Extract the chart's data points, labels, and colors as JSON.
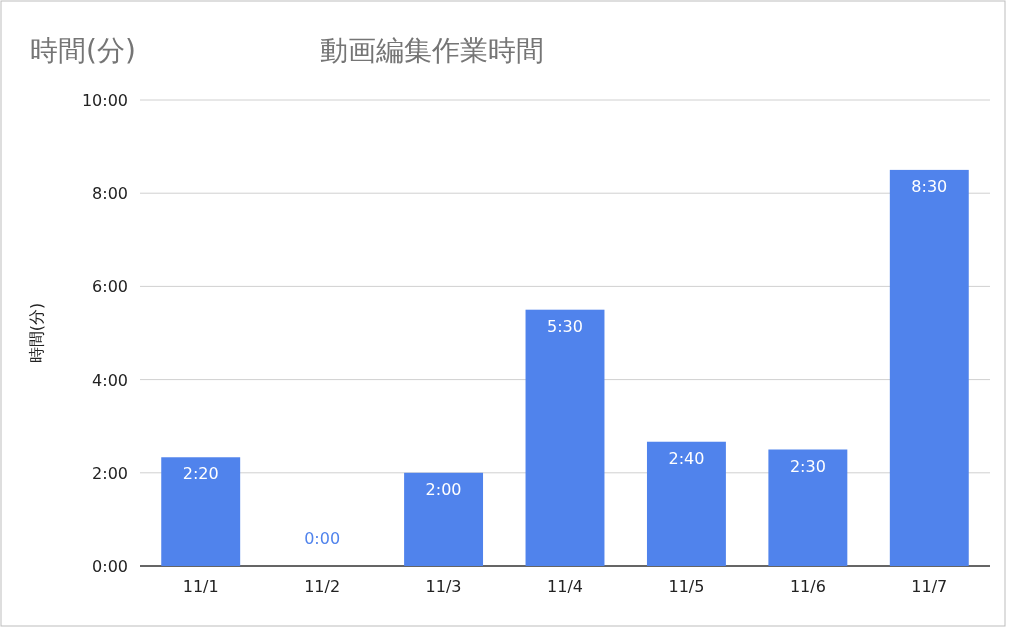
{
  "chart_data": {
    "type": "bar",
    "title": "動画編集作業時間",
    "ylabel": "時間(分)",
    "annotations": [
      "時間(分)"
    ],
    "categories": [
      "11/1",
      "11/2",
      "11/3",
      "11/4",
      "11/5",
      "11/6",
      "11/7"
    ],
    "values": [
      140,
      0,
      120,
      330,
      160,
      150,
      510
    ],
    "value_labels": [
      "2:20",
      "0:00",
      "2:00",
      "5:30",
      "2:40",
      "2:30",
      "8:30"
    ],
    "color": "#5083ec",
    "ylim": [
      0,
      600
    ],
    "yticks": [
      {
        "value": 0,
        "label": "0:00"
      },
      {
        "value": 120,
        "label": "2:00"
      },
      {
        "value": 240,
        "label": "4:00"
      },
      {
        "value": 360,
        "label": "6:00"
      },
      {
        "value": 480,
        "label": "8:00"
      },
      {
        "value": 600,
        "label": "10:00"
      }
    ],
    "grid": "y"
  }
}
